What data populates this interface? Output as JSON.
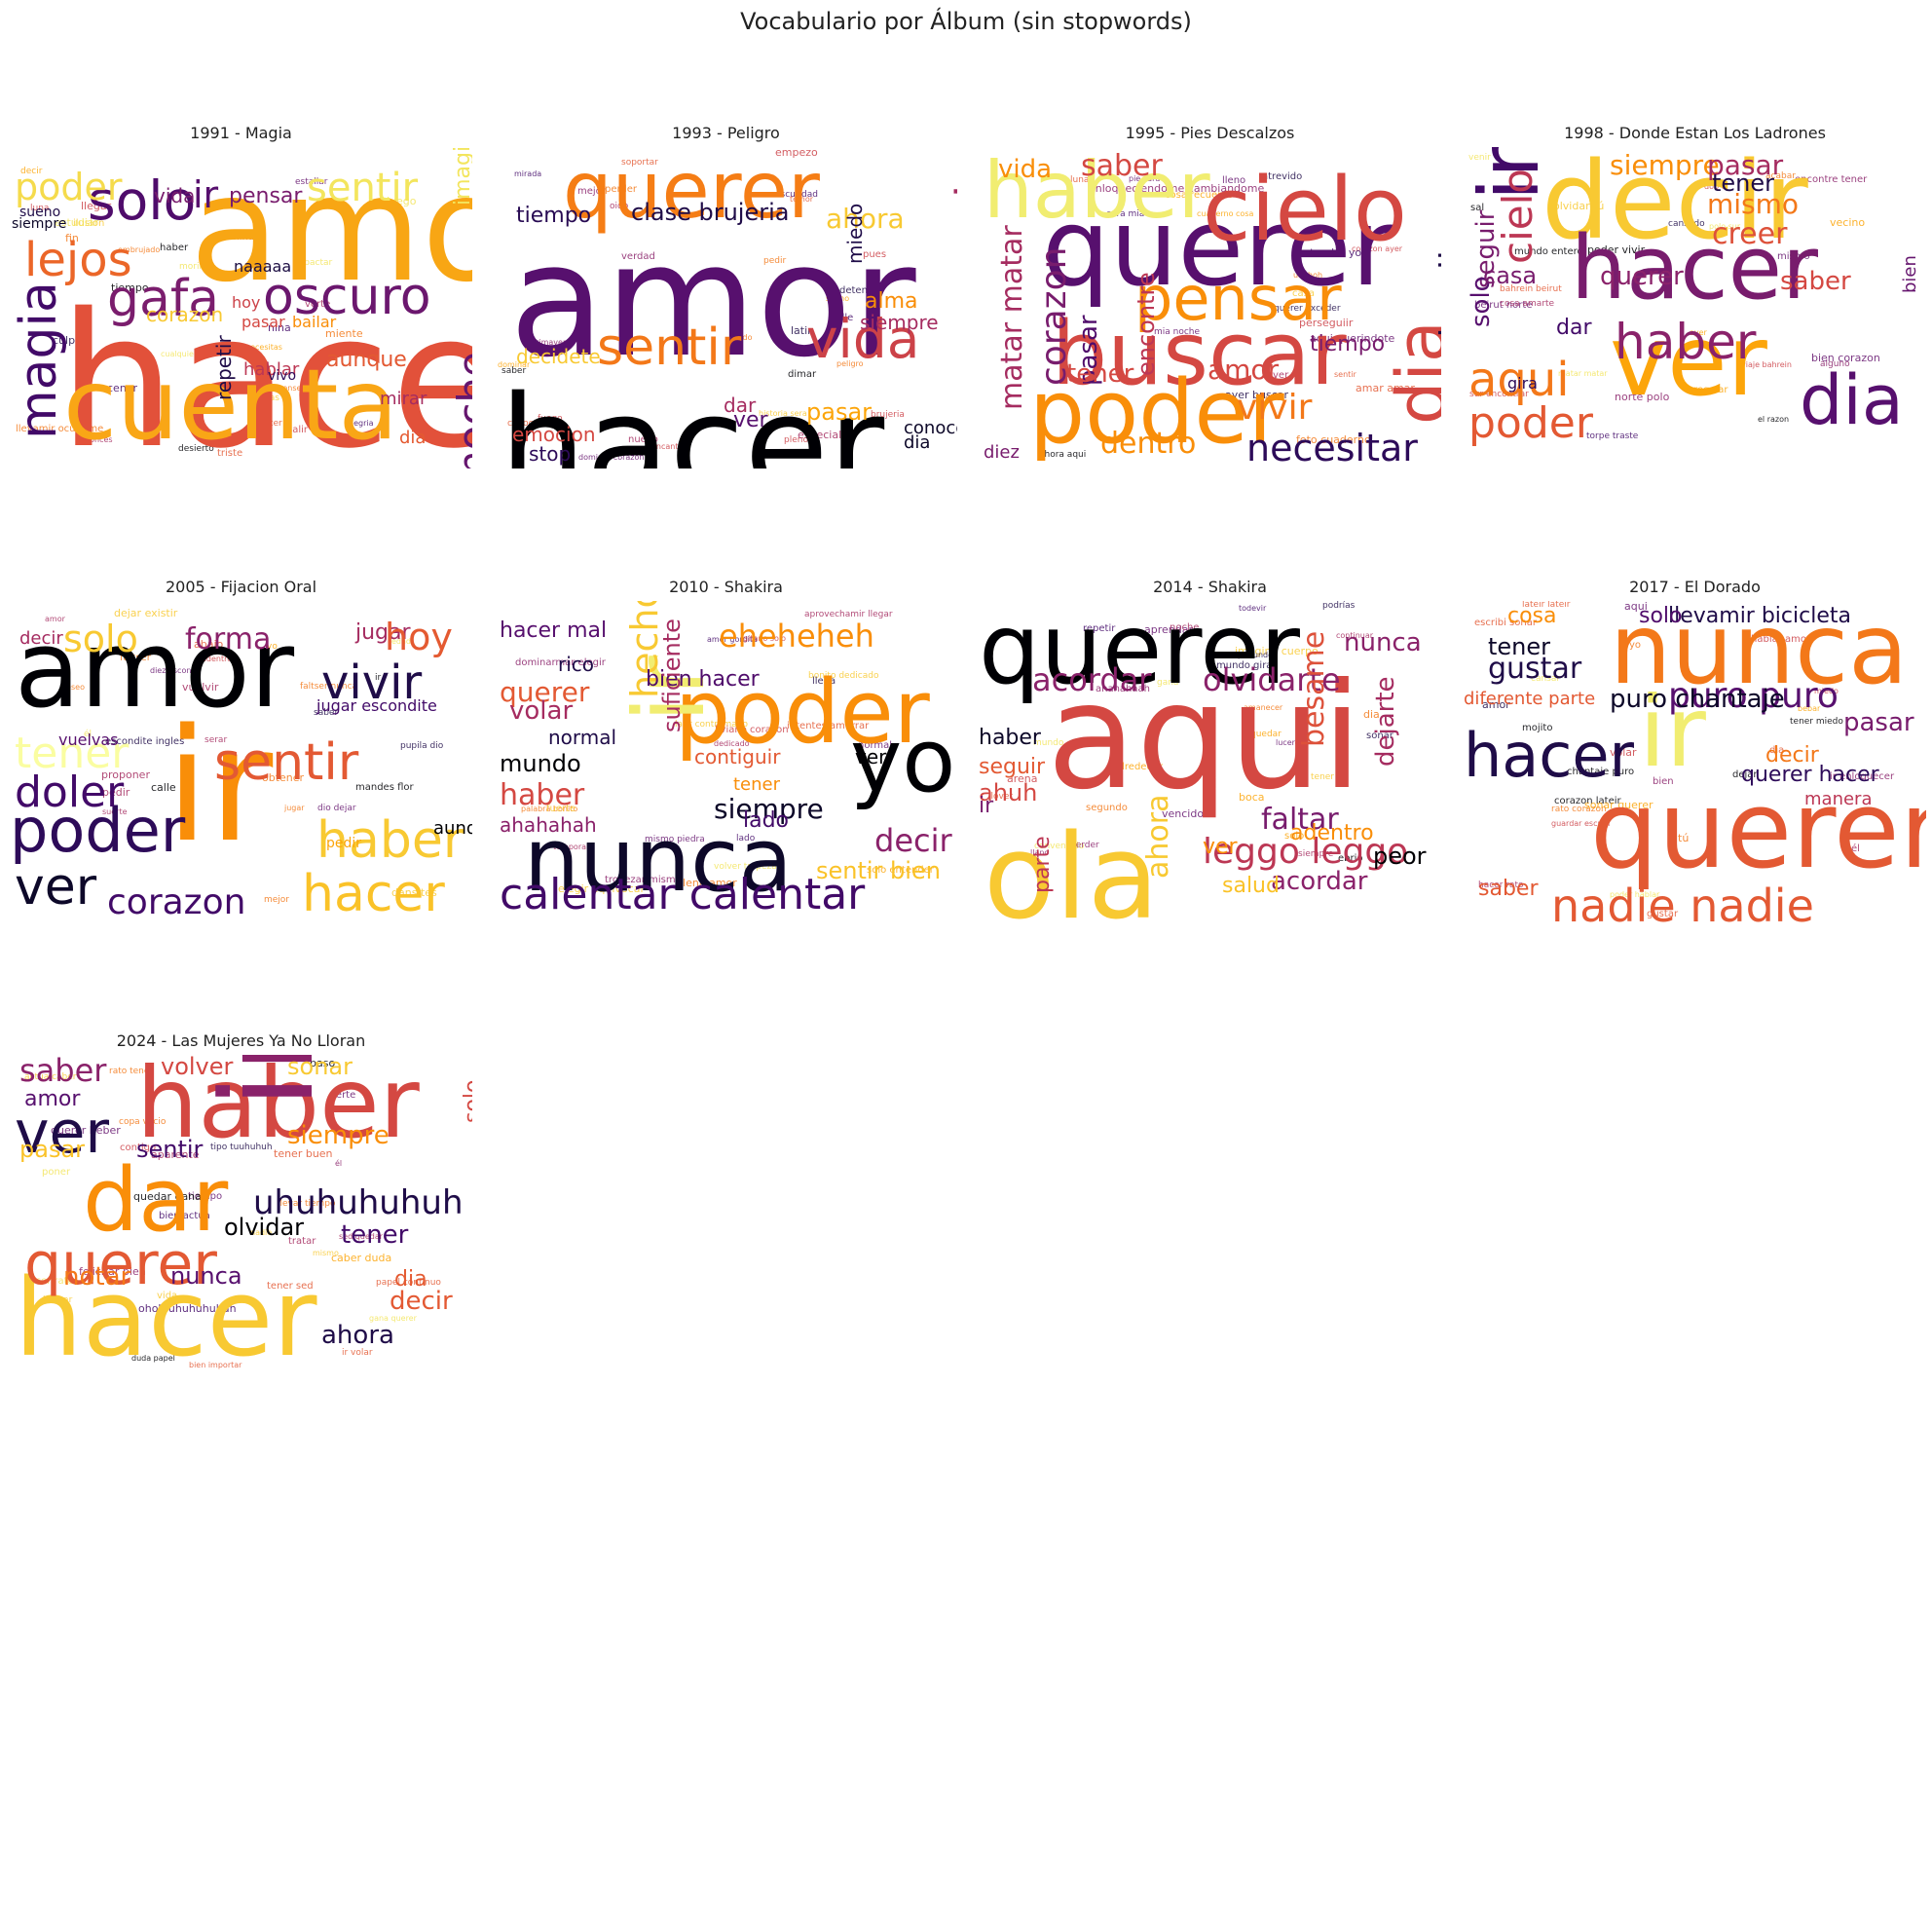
{
  "title": "Vocabulario por Álbum (sin stopwords)",
  "chart_data": [
    {
      "type": "wordcloud",
      "title": "1991 - Magia",
      "colormap": "inferno",
      "words": [
        {
          "text": "hacer",
          "color": "#e2513a"
        },
        {
          "text": "amor",
          "color": "#f8a614"
        },
        {
          "text": "cuenta",
          "color": "#f9a616"
        },
        {
          "text": "solo",
          "color": "#4f0c6b"
        },
        {
          "text": "lejos",
          "color": "#eb6628"
        },
        {
          "text": "gafa",
          "color": "#7a1d6d"
        },
        {
          "text": "oscuro",
          "color": "#6b176e"
        },
        {
          "text": "poder",
          "color": "#f5db4c"
        },
        {
          "text": "sentir",
          "color": "#f3e55d"
        },
        {
          "text": "magia",
          "color": "#420a68"
        },
        {
          "text": "ir",
          "color": "#57106e"
        },
        {
          "text": "noche",
          "color": "#65156e"
        },
        {
          "text": "pensar",
          "color": "#781c6d"
        },
        {
          "text": "repetir",
          "color": "#1f0c48"
        },
        {
          "text": "vida",
          "color": "#781c6d"
        },
        {
          "text": "sueno",
          "color": "#1f0c48"
        },
        {
          "text": "siempre",
          "color": "#0d0829"
        },
        {
          "text": "aunque",
          "color": "#e35933"
        },
        {
          "text": "hablar",
          "color": "#bc3754"
        },
        {
          "text": "mirar",
          "color": "#a52c60"
        },
        {
          "text": "corazon",
          "color": "#f8c932"
        },
        {
          "text": "dia",
          "color": "#e45a31"
        },
        {
          "text": "vivo",
          "color": "#2d0b59"
        },
        {
          "text": "bailar",
          "color": "#f98e09"
        },
        {
          "text": "hoy",
          "color": "#cc4248"
        },
        {
          "text": "pasar",
          "color": "#d44842"
        },
        {
          "text": "naaaaa",
          "color": "#1b0c41"
        },
        {
          "text": "imaginar",
          "color": "#f3e55d"
        }
      ]
    },
    {
      "type": "wordcloud",
      "title": "1993 - Peligro",
      "colormap": "inferno",
      "words": [
        {
          "text": "amor",
          "color": "#57106e"
        },
        {
          "text": "hacer",
          "color": "#000004"
        },
        {
          "text": "querer",
          "color": "#f57d15"
        },
        {
          "text": "vida",
          "color": "#cc4248"
        },
        {
          "text": "sentir",
          "color": "#f37819"
        },
        {
          "text": "haber",
          "color": "#a52c60"
        },
        {
          "text": "clase brujeria",
          "color": "#1f0c48"
        },
        {
          "text": "tiempo",
          "color": "#280b53"
        },
        {
          "text": "ahora",
          "color": "#f8c932"
        },
        {
          "text": "alma",
          "color": "#f98e09"
        },
        {
          "text": "siempre",
          "color": "#a52c60"
        },
        {
          "text": "pasar",
          "color": "#fca50a"
        },
        {
          "text": "stop",
          "color": "#2d0b59"
        },
        {
          "text": "conocer",
          "color": "#0d0829"
        },
        {
          "text": "dia",
          "color": "#0d0829"
        },
        {
          "text": "miedo",
          "color": "#1f0c48"
        },
        {
          "text": "emocion",
          "color": "#d44842"
        },
        {
          "text": "ver",
          "color": "#57106e"
        },
        {
          "text": "dar",
          "color": "#a52c60"
        },
        {
          "text": "ir",
          "color": "#f98e09"
        },
        {
          "text": "decidete",
          "color": "#f8c932"
        },
        {
          "text": "decir",
          "color": "#f3e55d"
        }
      ]
    },
    {
      "type": "wordcloud",
      "title": "1995 - Pies Descalzos",
      "colormap": "inferno",
      "words": [
        {
          "text": "querer",
          "color": "#57106e"
        },
        {
          "text": "buscar",
          "color": "#d44842"
        },
        {
          "text": "poder",
          "color": "#f98e09"
        },
        {
          "text": "haber",
          "color": "#f1ed71"
        },
        {
          "text": "cielo",
          "color": "#d44842"
        },
        {
          "text": "pensar",
          "color": "#f98e09"
        },
        {
          "text": "necesitar",
          "color": "#2d0b59"
        },
        {
          "text": "dia",
          "color": "#d44842"
        },
        {
          "text": "noche dia",
          "color": "#1f0c48"
        },
        {
          "text": "vivir",
          "color": "#f37819"
        },
        {
          "text": "corazon",
          "color": "#781c6d"
        },
        {
          "text": "matar matar",
          "color": "#a52c60"
        },
        {
          "text": "pasar",
          "color": "#4f0c6b"
        },
        {
          "text": "saber",
          "color": "#d44842"
        },
        {
          "text": "vida",
          "color": "#f98e09"
        },
        {
          "text": "tiempo",
          "color": "#781c6d"
        },
        {
          "text": "tener",
          "color": "#d44842"
        },
        {
          "text": "dentro",
          "color": "#f98e09"
        },
        {
          "text": "amor",
          "color": "#d44842"
        },
        {
          "text": "encontre",
          "color": "#bc3754"
        },
        {
          "text": "diez",
          "color": "#781c6d"
        }
      ]
    },
    {
      "type": "wordcloud",
      "title": "1998 - Donde Estan Los Ladrones",
      "colormap": "inferno",
      "words": [
        {
          "text": "decir",
          "color": "#f8c932"
        },
        {
          "text": "hacer",
          "color": "#781c6d"
        },
        {
          "text": "ver",
          "color": "#fca50a"
        },
        {
          "text": "ir",
          "color": "#420a68"
        },
        {
          "text": "dia",
          "color": "#57106e"
        },
        {
          "text": "haber",
          "color": "#8a226a"
        },
        {
          "text": "poder",
          "color": "#e35933"
        },
        {
          "text": "aqui",
          "color": "#f37819"
        },
        {
          "text": "cielo",
          "color": "#bc3754"
        },
        {
          "text": "creer",
          "color": "#dd513a"
        },
        {
          "text": "siempre",
          "color": "#f98e09"
        },
        {
          "text": "pasar",
          "color": "#a52c60"
        },
        {
          "text": "tener",
          "color": "#1f0c48"
        },
        {
          "text": "mismo",
          "color": "#f37819"
        },
        {
          "text": "saber",
          "color": "#d44842"
        },
        {
          "text": "querer",
          "color": "#8a226a"
        },
        {
          "text": "seguir",
          "color": "#781c6d"
        },
        {
          "text": "solo",
          "color": "#57106e"
        },
        {
          "text": "casa",
          "color": "#781c6d"
        },
        {
          "text": "dar",
          "color": "#420a68"
        },
        {
          "text": "bien",
          "color": "#65156e"
        },
        {
          "text": "gira",
          "color": "#2d0b59"
        }
      ]
    },
    {
      "type": "wordcloud",
      "title": "2005 - Fijacion Oral",
      "colormap": "inferno",
      "words": [
        {
          "text": "amor",
          "color": "#000004"
        },
        {
          "text": "ir",
          "color": "#f98e09"
        },
        {
          "text": "poder",
          "color": "#2d0b59"
        },
        {
          "text": "vivir",
          "color": "#1f0c48"
        },
        {
          "text": "sentir",
          "color": "#e35933"
        },
        {
          "text": "doler",
          "color": "#420a68"
        },
        {
          "text": "ver",
          "color": "#0d0829"
        },
        {
          "text": "corazon",
          "color": "#420a68"
        },
        {
          "text": "haber",
          "color": "#f8c932"
        },
        {
          "text": "hacer",
          "color": "#fac228"
        },
        {
          "text": "solo",
          "color": "#f8c932"
        },
        {
          "text": "forma",
          "color": "#8a226a"
        },
        {
          "text": "jugar",
          "color": "#a52c60"
        },
        {
          "text": "hoy",
          "color": "#e45a31"
        },
        {
          "text": "tener",
          "color": "#fafda1"
        },
        {
          "text": "vuelvas",
          "color": "#57106e"
        },
        {
          "text": "decir",
          "color": "#a52c60"
        },
        {
          "text": "jugar escondite",
          "color": "#420a68"
        },
        {
          "text": "aunque",
          "color": "#000004"
        },
        {
          "text": "pedir",
          "color": "#fca50a"
        }
      ]
    },
    {
      "type": "wordcloud",
      "title": "2010 - Shakira",
      "colormap": "inferno",
      "words": [
        {
          "text": "nunca",
          "color": "#0d0829"
        },
        {
          "text": "poder",
          "color": "#f98e09"
        },
        {
          "text": "yo",
          "color": "#000004"
        },
        {
          "text": "ir",
          "color": "#f1ed71"
        },
        {
          "text": "calentar calentar",
          "color": "#420a68"
        },
        {
          "text": "hecho",
          "color": "#f8c932"
        },
        {
          "text": "eheheheh",
          "color": "#f98e09"
        },
        {
          "text": "decir",
          "color": "#8a226a"
        },
        {
          "text": "querer",
          "color": "#e35933"
        },
        {
          "text": "haber",
          "color": "#d44842"
        },
        {
          "text": "siempre",
          "color": "#0d0829"
        },
        {
          "text": "volar",
          "color": "#a52c60"
        },
        {
          "text": "mundo",
          "color": "#000004"
        },
        {
          "text": "hacer mal",
          "color": "#57106e"
        },
        {
          "text": "bien hacer",
          "color": "#4f0c6b"
        },
        {
          "text": "rico",
          "color": "#1f0c48"
        },
        {
          "text": "ahahahah",
          "color": "#8a226a"
        },
        {
          "text": "sentir bien",
          "color": "#fac228"
        },
        {
          "text": "contiguir",
          "color": "#e35933"
        },
        {
          "text": "normal",
          "color": "#1f0c48"
        },
        {
          "text": "suficiente",
          "color": "#a52c60"
        },
        {
          "text": "lado",
          "color": "#420a68"
        },
        {
          "text": "ver",
          "color": "#000004"
        },
        {
          "text": "tener",
          "color": "#f98e09"
        }
      ]
    },
    {
      "type": "wordcloud",
      "title": "2014 - Shakira",
      "colormap": "inferno",
      "words": [
        {
          "text": "aqui",
          "color": "#d44842"
        },
        {
          "text": "querer",
          "color": "#000004"
        },
        {
          "text": "ola",
          "color": "#f8c932"
        },
        {
          "text": "olvidarte",
          "color": "#8a226a"
        },
        {
          "text": "acordar",
          "color": "#8a226a"
        },
        {
          "text": "leggo leggo",
          "color": "#bc3754"
        },
        {
          "text": "faltar",
          "color": "#781c6d"
        },
        {
          "text": "nunca",
          "color": "#8a226a"
        },
        {
          "text": "besame",
          "color": "#dd513a"
        },
        {
          "text": "ahora",
          "color": "#f8c932"
        },
        {
          "text": "haber",
          "color": "#0d0829"
        },
        {
          "text": "seguir",
          "color": "#e35933"
        },
        {
          "text": "ahuh",
          "color": "#d44842"
        },
        {
          "text": "parte",
          "color": "#bc3754"
        },
        {
          "text": "acordar",
          "color": "#8a226a"
        },
        {
          "text": "dejarte",
          "color": "#a52c60"
        },
        {
          "text": "peor",
          "color": "#000004"
        },
        {
          "text": "adentro",
          "color": "#f98e09"
        },
        {
          "text": "salud",
          "color": "#fac228"
        },
        {
          "text": "ver",
          "color": "#f98e09"
        },
        {
          "text": "ir",
          "color": "#781c6d"
        }
      ]
    },
    {
      "type": "wordcloud",
      "title": "2017 - El Dorado",
      "colormap": "inferno",
      "words": [
        {
          "text": "querer",
          "color": "#e35933"
        },
        {
          "text": "nunca",
          "color": "#f37819"
        },
        {
          "text": "ir",
          "color": "#f1ed71"
        },
        {
          "text": "hacer",
          "color": "#1f0c48"
        },
        {
          "text": "nadie nadie",
          "color": "#e35933"
        },
        {
          "text": "puro puro",
          "color": "#57106e"
        },
        {
          "text": "puro chantaje",
          "color": "#0d0829"
        },
        {
          "text": "gustar",
          "color": "#1f0c48"
        },
        {
          "text": "tener",
          "color": "#0d0829"
        },
        {
          "text": "llevamir bicicleta",
          "color": "#1f0c48"
        },
        {
          "text": "solo",
          "color": "#4f0c6b"
        },
        {
          "text": "pasar",
          "color": "#781c6d"
        },
        {
          "text": "querer hacer",
          "color": "#2d0b59"
        },
        {
          "text": "decir",
          "color": "#f37819"
        },
        {
          "text": "saber",
          "color": "#e35933"
        },
        {
          "text": "diferente parte",
          "color": "#e35933"
        },
        {
          "text": "manera",
          "color": "#bc3754"
        },
        {
          "text": "cosa",
          "color": "#f98e09"
        }
      ]
    },
    {
      "type": "wordcloud",
      "title": "2024 - Las Mujeres Ya No Lloran",
      "colormap": "inferno",
      "words": [
        {
          "text": "hacer",
          "color": "#f8c932"
        },
        {
          "text": "haber",
          "color": "#d44842"
        },
        {
          "text": "dar",
          "color": "#f98e09"
        },
        {
          "text": "querer",
          "color": "#e35933"
        },
        {
          "text": "ir",
          "color": "#8a226a"
        },
        {
          "text": "ver",
          "color": "#1f0c48"
        },
        {
          "text": "uhuhuhuhuh",
          "color": "#1f0c48"
        },
        {
          "text": "siempre",
          "color": "#f98e09"
        },
        {
          "text": "sentir",
          "color": "#420a68"
        },
        {
          "text": "volver",
          "color": "#d44842"
        },
        {
          "text": "sonar",
          "color": "#f8c932"
        },
        {
          "text": "saber",
          "color": "#8a226a"
        },
        {
          "text": "pasar",
          "color": "#fac228"
        },
        {
          "text": "olvidar",
          "color": "#000004"
        },
        {
          "text": "tener",
          "color": "#420a68"
        },
        {
          "text": "decir",
          "color": "#e35933"
        },
        {
          "text": "nunca",
          "color": "#57106e"
        },
        {
          "text": "notar",
          "color": "#f37819"
        },
        {
          "text": "amor",
          "color": "#57106e"
        },
        {
          "text": "ahora",
          "color": "#1f0c48"
        },
        {
          "text": "dia",
          "color": "#e45a31"
        },
        {
          "text": "solo",
          "color": "#d44842"
        }
      ]
    }
  ]
}
